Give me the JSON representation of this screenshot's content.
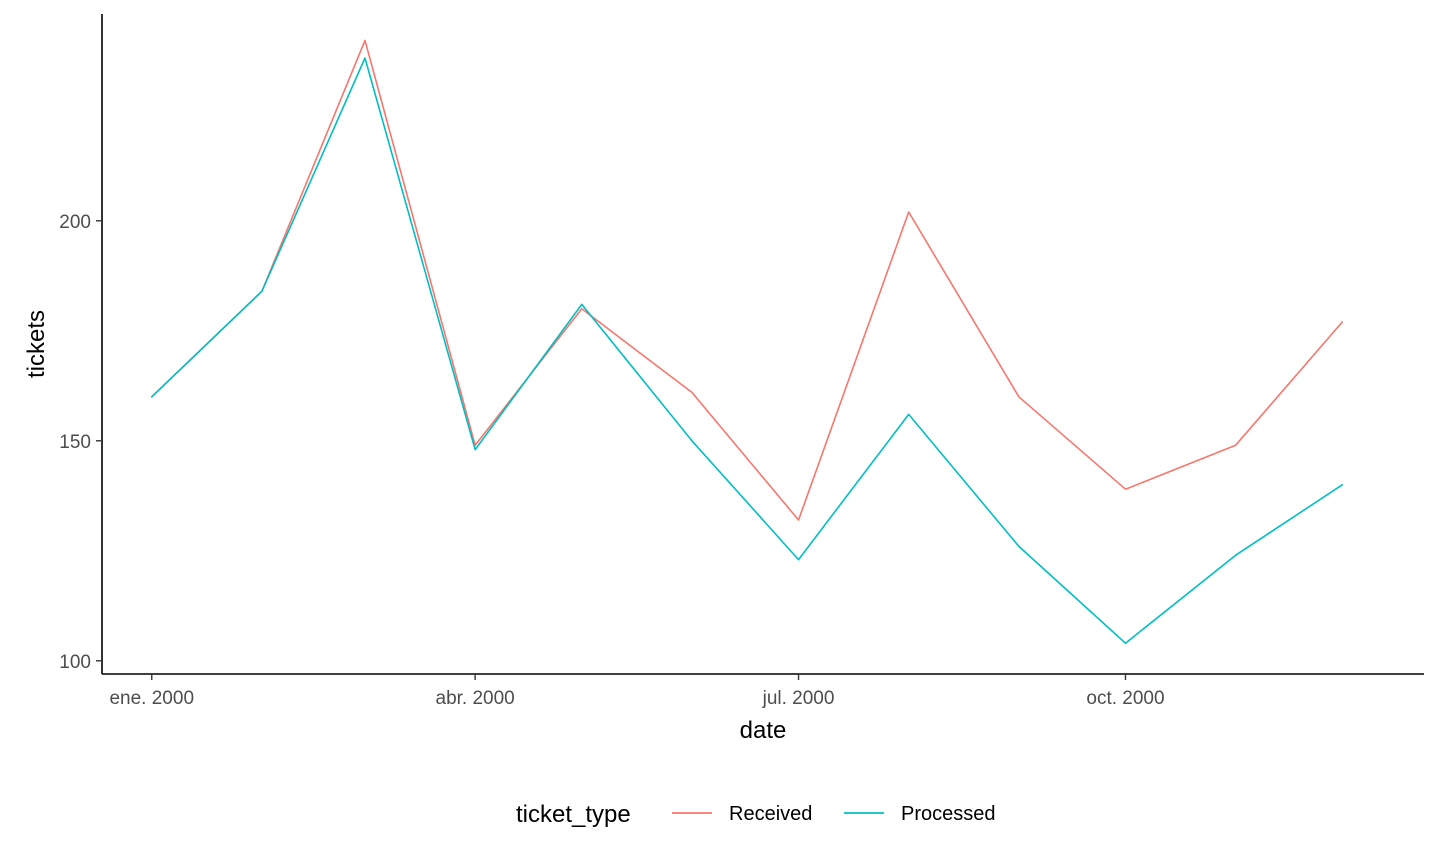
{
  "chart_data": {
    "type": "line",
    "xlabel": "date",
    "ylabel": "tickets",
    "x": [
      "2000-01-01",
      "2000-02-01",
      "2000-03-01",
      "2000-04-01",
      "2000-05-01",
      "2000-06-01",
      "2000-07-01",
      "2000-08-01",
      "2000-09-01",
      "2000-10-01",
      "2000-11-01",
      "2000-12-01"
    ],
    "xticks": [
      {
        "date": "2000-01-01",
        "label": "ene. 2000"
      },
      {
        "date": "2000-04-01",
        "label": "abr. 2000"
      },
      {
        "date": "2000-07-01",
        "label": "jul. 2000"
      },
      {
        "date": "2000-10-01",
        "label": "oct. 2000"
      }
    ],
    "yticks": [
      100,
      150,
      200
    ],
    "xlim": [
      "1999-12-18",
      "2000-12-24"
    ],
    "ylim": [
      97,
      247
    ],
    "grid": false,
    "legend": {
      "title": "ticket_type",
      "position": "bottom"
    },
    "series": [
      {
        "name": "Received",
        "color": "#F8766D",
        "values": [
          160,
          184,
          241,
          149,
          180,
          161,
          132,
          202,
          160,
          139,
          149,
          177
        ]
      },
      {
        "name": "Processed",
        "color": "#00BFC4",
        "values": [
          160,
          184,
          237,
          148,
          181,
          150,
          123,
          156,
          126,
          104,
          124,
          140
        ]
      }
    ]
  }
}
